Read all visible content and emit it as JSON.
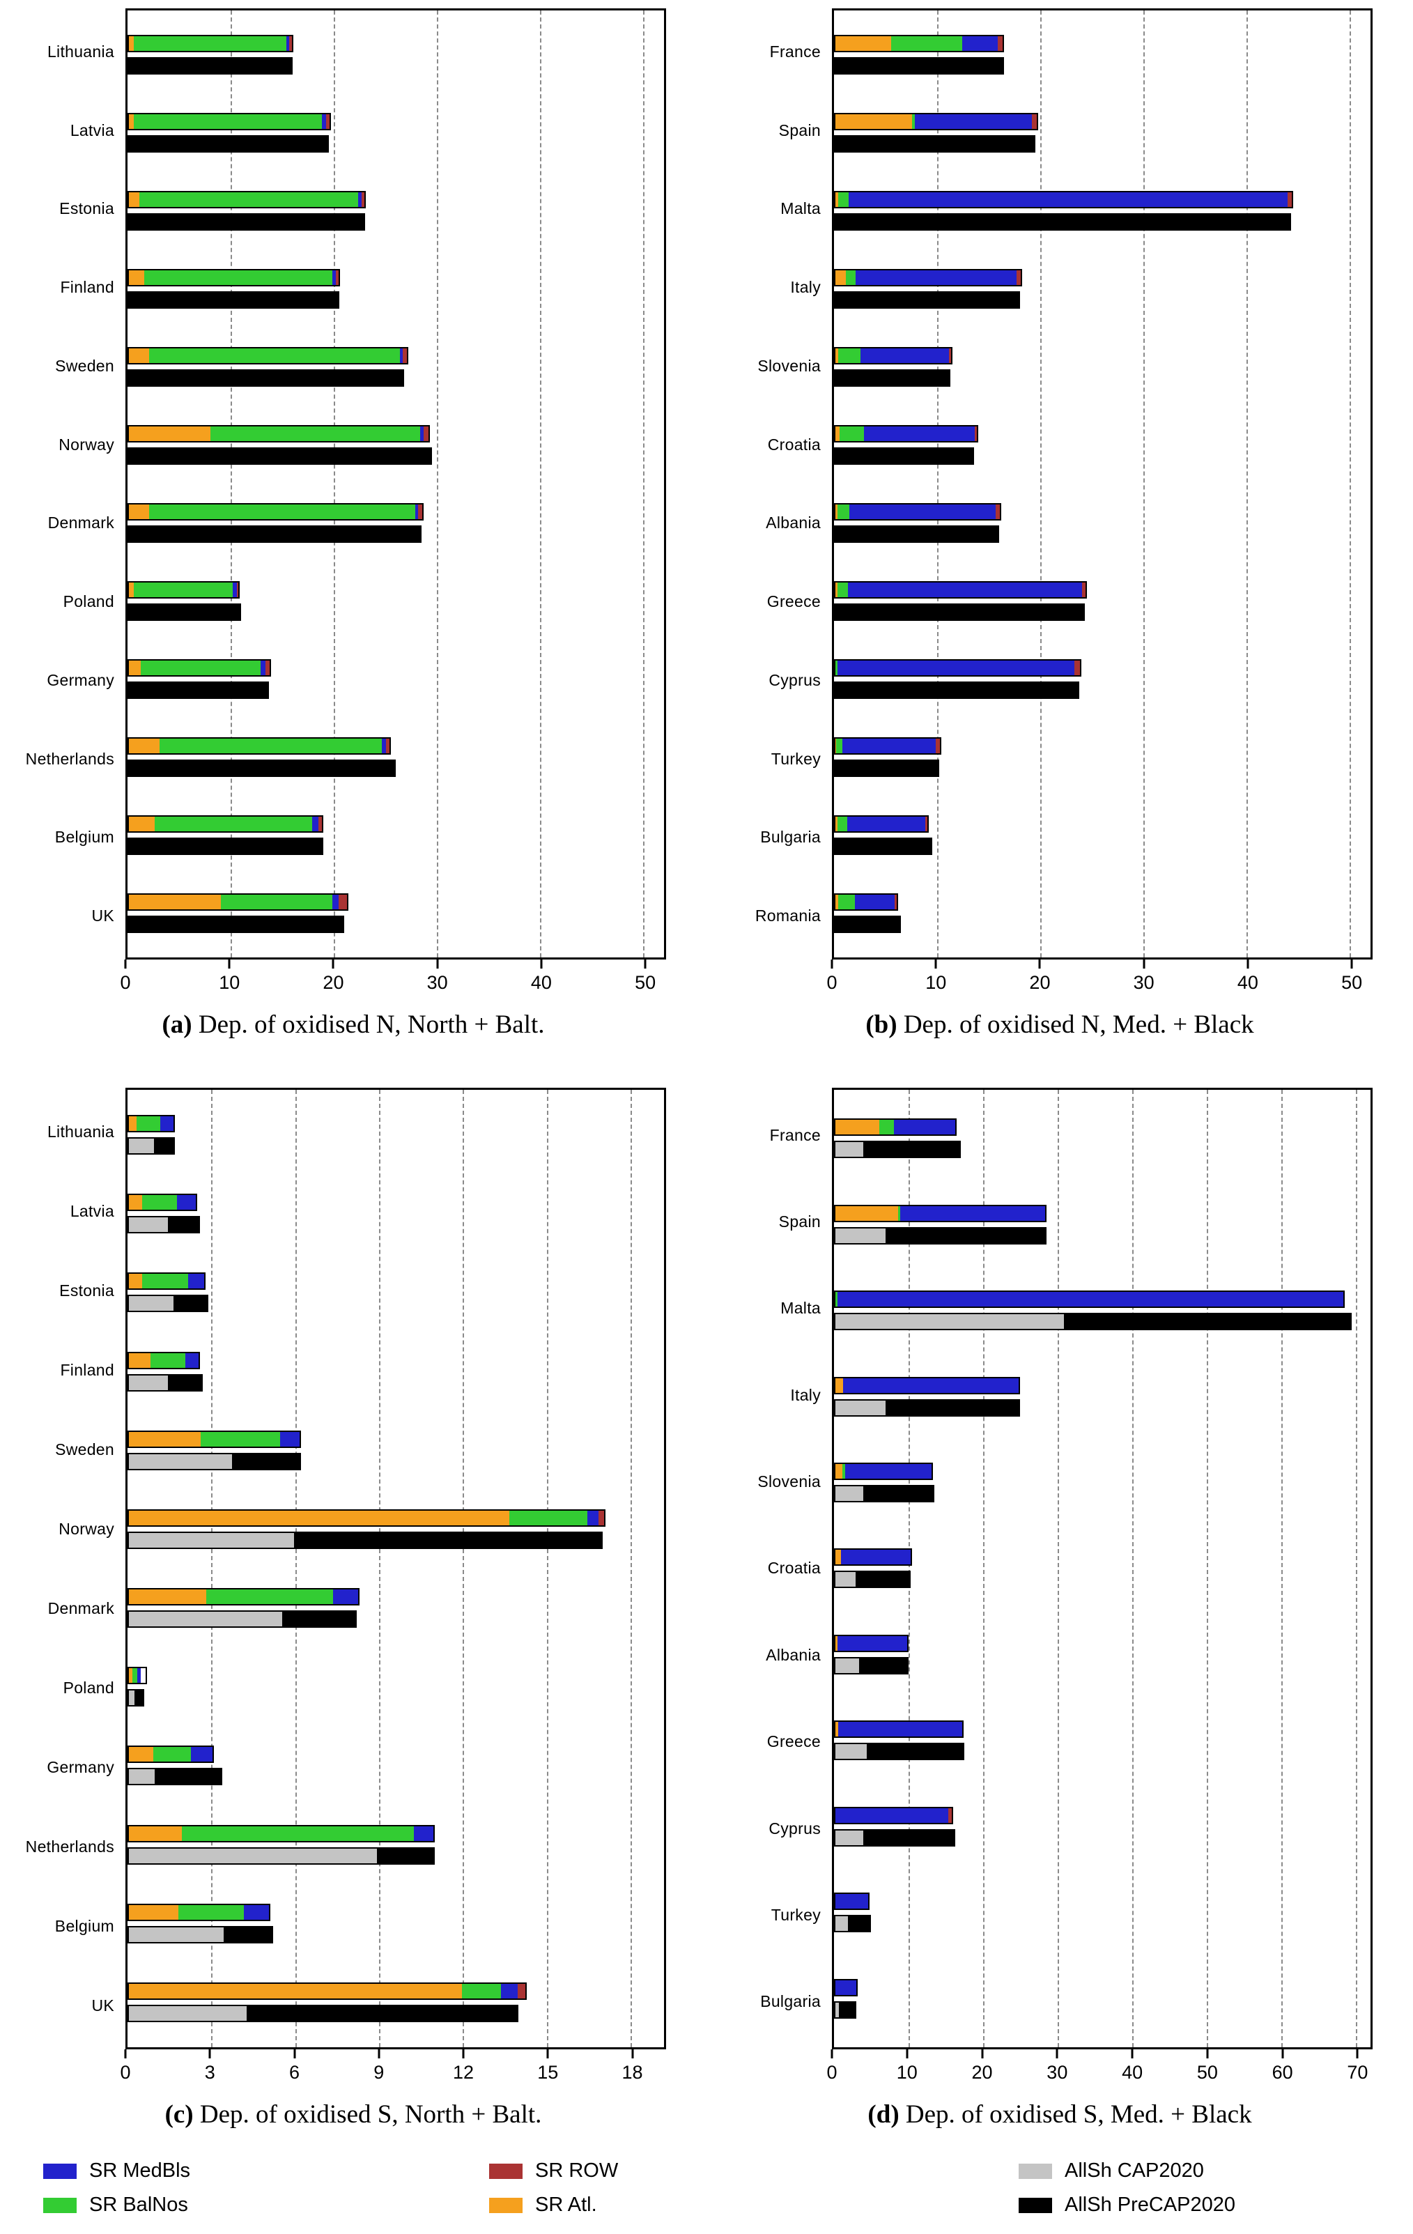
{
  "colors": {
    "medbls": "#2222cc",
    "balnos": "#33cc33",
    "row": "#aa3333",
    "atl": "#f5a01e",
    "cap2020": "#c4c4c4",
    "precap2020": "#000000",
    "gridline": "#8a8a8a"
  },
  "legend": {
    "items": [
      {
        "key": "medbls",
        "label": "SR MedBls",
        "color": "#2222cc"
      },
      {
        "key": "balnos",
        "label": "SR BalNos",
        "color": "#33cc33"
      },
      {
        "key": "row",
        "label": "SR ROW",
        "color": "#aa3333"
      },
      {
        "key": "atl",
        "label": "SR Atl.",
        "color": "#f5a01e"
      },
      {
        "key": "cap2020",
        "label": "AllSh CAP2020",
        "color": "#c4c4c4"
      },
      {
        "key": "precap2020",
        "label": "AllSh  PreCAP2020",
        "color": "#000000"
      }
    ]
  },
  "chart_data": [
    {
      "id": "a",
      "type": "bar",
      "orientation": "horizontal-stacked",
      "caption_letter": "(a)",
      "caption_text": "Dep. of oxidised N, North + Balt.",
      "xticks": [
        0,
        10,
        20,
        30,
        40,
        50
      ],
      "axis_max": 52,
      "series_keys": [
        "atl",
        "balnos",
        "medbls",
        "row"
      ],
      "rows": [
        {
          "label": "Lithuania",
          "atl": 0.5,
          "balnos": 15.0,
          "medbls": 0.3,
          "row": 0.3,
          "precap": 16.0,
          "cap": null
        },
        {
          "label": "Latvia",
          "atl": 0.5,
          "balnos": 18.5,
          "medbls": 0.4,
          "row": 0.3,
          "precap": 19.5,
          "cap": null
        },
        {
          "label": "Estonia",
          "atl": 1.0,
          "balnos": 21.5,
          "medbls": 0.3,
          "row": 0.3,
          "precap": 23.0,
          "cap": null
        },
        {
          "label": "Finland",
          "atl": 1.5,
          "balnos": 18.5,
          "medbls": 0.3,
          "row": 0.3,
          "precap": 20.5,
          "cap": null
        },
        {
          "label": "Sweden",
          "atl": 2.0,
          "balnos": 24.5,
          "medbls": 0.3,
          "row": 0.4,
          "precap": 26.8,
          "cap": null
        },
        {
          "label": "Norway",
          "atl": 8.0,
          "balnos": 20.5,
          "medbls": 0.3,
          "row": 0.5,
          "precap": 29.5,
          "cap": null
        },
        {
          "label": "Denmark",
          "atl": 2.0,
          "balnos": 26.0,
          "medbls": 0.3,
          "row": 0.4,
          "precap": 28.5,
          "cap": null
        },
        {
          "label": "Poland",
          "atl": 0.5,
          "balnos": 9.8,
          "medbls": 0.4,
          "row": 0.2,
          "precap": 11.0,
          "cap": null
        },
        {
          "label": "Germany",
          "atl": 1.2,
          "balnos": 11.8,
          "medbls": 0.5,
          "row": 0.4,
          "precap": 13.7,
          "cap": null
        },
        {
          "label": "Netherlands",
          "atl": 3.0,
          "balnos": 21.8,
          "medbls": 0.4,
          "row": 0.3,
          "precap": 26.0,
          "cap": null
        },
        {
          "label": "Belgium",
          "atl": 2.5,
          "balnos": 15.5,
          "medbls": 0.6,
          "row": 0.4,
          "precap": 19.0,
          "cap": null
        },
        {
          "label": "UK",
          "atl": 9.0,
          "balnos": 11.0,
          "medbls": 0.6,
          "row": 0.8,
          "precap": 21.0,
          "cap": null
        }
      ]
    },
    {
      "id": "b",
      "type": "bar",
      "orientation": "horizontal-stacked",
      "caption_letter": "(b)",
      "caption_text": "Dep. of oxidised N, Med. + Black",
      "xticks": [
        0,
        10,
        20,
        30,
        40,
        50
      ],
      "axis_max": 52,
      "series_keys": [
        "atl",
        "balnos",
        "medbls",
        "row"
      ],
      "rows": [
        {
          "label": "France",
          "atl": 5.5,
          "balnos": 7.0,
          "medbls": 3.5,
          "row": 0.5,
          "precap": 16.5,
          "cap": null
        },
        {
          "label": "Spain",
          "atl": 7.5,
          "balnos": 0.3,
          "medbls": 11.5,
          "row": 0.5,
          "precap": 19.5,
          "cap": null
        },
        {
          "label": "Malta",
          "atl": 0.3,
          "balnos": 1.0,
          "medbls": 42.8,
          "row": 0.4,
          "precap": 44.3,
          "cap": null
        },
        {
          "label": "Italy",
          "atl": 1.0,
          "balnos": 1.0,
          "medbls": 15.8,
          "row": 0.4,
          "precap": 18.0,
          "cap": null
        },
        {
          "label": "Slovenia",
          "atl": 0.3,
          "balnos": 2.2,
          "medbls": 8.8,
          "row": 0.2,
          "precap": 11.3,
          "cap": null
        },
        {
          "label": "Croatia",
          "atl": 0.4,
          "balnos": 2.4,
          "medbls": 11.0,
          "row": 0.2,
          "precap": 13.6,
          "cap": null
        },
        {
          "label": "Albania",
          "atl": 0.2,
          "balnos": 1.2,
          "medbls": 14.4,
          "row": 0.4,
          "precap": 16.0,
          "cap": null
        },
        {
          "label": "Greece",
          "atl": 0.2,
          "balnos": 1.0,
          "medbls": 23.0,
          "row": 0.3,
          "precap": 24.3,
          "cap": null
        },
        {
          "label": "Cyprus",
          "atl": 0.0,
          "balnos": 0.2,
          "medbls": 23.2,
          "row": 0.6,
          "precap": 23.8,
          "cap": null
        },
        {
          "label": "Turkey",
          "atl": 0.1,
          "balnos": 0.6,
          "medbls": 9.3,
          "row": 0.4,
          "precap": 10.2,
          "cap": null
        },
        {
          "label": "Bulgaria",
          "atl": 0.2,
          "balnos": 1.0,
          "medbls": 7.8,
          "row": 0.2,
          "precap": 9.5,
          "cap": null
        },
        {
          "label": "Romania",
          "atl": 0.3,
          "balnos": 1.7,
          "medbls": 4.0,
          "row": 0.2,
          "precap": 6.5,
          "cap": null
        }
      ]
    },
    {
      "id": "c",
      "type": "bar",
      "orientation": "horizontal-stacked",
      "caption_letter": "(c)",
      "caption_text": "Dep. of oxidised S, North + Balt.",
      "xticks": [
        0,
        3,
        6,
        9,
        12,
        15,
        18
      ],
      "axis_max": 19.2,
      "series_keys": [
        "atl",
        "balnos",
        "medbls",
        "row"
      ],
      "rows": [
        {
          "label": "Lithuania",
          "atl": 0.3,
          "balnos": 0.9,
          "medbls": 0.5,
          "row": 0.0,
          "precap": 1.7,
          "cap": 1.0
        },
        {
          "label": "Latvia",
          "atl": 0.5,
          "balnos": 1.3,
          "medbls": 0.7,
          "row": 0.0,
          "precap": 2.6,
          "cap": 1.5
        },
        {
          "label": "Estonia",
          "atl": 0.5,
          "balnos": 1.7,
          "medbls": 0.6,
          "row": 0.0,
          "precap": 2.9,
          "cap": 1.7
        },
        {
          "label": "Finland",
          "atl": 0.8,
          "balnos": 1.3,
          "medbls": 0.5,
          "row": 0.0,
          "precap": 2.7,
          "cap": 1.5
        },
        {
          "label": "Sweden",
          "atl": 2.6,
          "balnos": 2.9,
          "medbls": 0.7,
          "row": 0.0,
          "precap": 6.2,
          "cap": 3.8
        },
        {
          "label": "Norway",
          "atl": 13.7,
          "balnos": 2.8,
          "medbls": 0.4,
          "row": 0.2,
          "precap": 17.0,
          "cap": 6.0
        },
        {
          "label": "Denmark",
          "atl": 2.8,
          "balnos": 4.6,
          "medbls": 0.9,
          "row": 0.0,
          "precap": 8.2,
          "cap": 5.6
        },
        {
          "label": "Poland",
          "atl": 0.2,
          "balnos": 0.3,
          "medbls": 0.2,
          "row": 0.0,
          "precap": 0.6,
          "cap": 0.3
        },
        {
          "label": "Germany",
          "atl": 0.9,
          "balnos": 1.4,
          "medbls": 0.8,
          "row": 0.0,
          "precap": 3.4,
          "cap": 1.0
        },
        {
          "label": "Netherlands",
          "atl": 1.9,
          "balnos": 8.4,
          "medbls": 0.7,
          "row": 0.0,
          "precap": 11.0,
          "cap": 9.0
        },
        {
          "label": "Belgium",
          "atl": 1.8,
          "balnos": 2.4,
          "medbls": 0.9,
          "row": 0.0,
          "precap": 5.2,
          "cap": 3.5
        },
        {
          "label": "UK",
          "atl": 12.0,
          "balnos": 1.4,
          "medbls": 0.6,
          "row": 0.3,
          "precap": 14.0,
          "cap": 4.3
        }
      ]
    },
    {
      "id": "d",
      "type": "bar",
      "orientation": "horizontal-stacked",
      "caption_letter": "(d)",
      "caption_text": "Dep. of oxidised S, Med. + Black",
      "xticks": [
        0,
        10,
        20,
        30,
        40,
        50,
        60,
        70
      ],
      "axis_max": 72,
      "series_keys": [
        "atl",
        "balnos",
        "medbls",
        "row"
      ],
      "rows": [
        {
          "label": "France",
          "atl": 6.0,
          "balnos": 2.0,
          "medbls": 8.5,
          "row": 0.0,
          "precap": 17.0,
          "cap": 4.0
        },
        {
          "label": "Spain",
          "atl": 8.5,
          "balnos": 0.3,
          "medbls": 19.7,
          "row": 0.0,
          "precap": 28.5,
          "cap": 7.0
        },
        {
          "label": "Malta",
          "atl": 0.0,
          "balnos": 0.3,
          "medbls": 68.2,
          "row": 0.0,
          "precap": 69.5,
          "cap": 31.0
        },
        {
          "label": "Italy",
          "atl": 1.0,
          "balnos": 0.0,
          "medbls": 24.0,
          "row": 0.0,
          "precap": 25.0,
          "cap": 7.0
        },
        {
          "label": "Slovenia",
          "atl": 1.0,
          "balnos": 0.3,
          "medbls": 12.0,
          "row": 0.0,
          "precap": 13.5,
          "cap": 4.0
        },
        {
          "label": "Croatia",
          "atl": 0.8,
          "balnos": 0.0,
          "medbls": 9.7,
          "row": 0.0,
          "precap": 10.3,
          "cap": 3.0
        },
        {
          "label": "Albania",
          "atl": 0.3,
          "balnos": 0.0,
          "medbls": 9.7,
          "row": 0.0,
          "precap": 10.0,
          "cap": 3.5
        },
        {
          "label": "Greece",
          "atl": 0.4,
          "balnos": 0.0,
          "medbls": 17.0,
          "row": 0.0,
          "precap": 17.5,
          "cap": 4.5
        },
        {
          "label": "Cyprus",
          "atl": 0.0,
          "balnos": 0.0,
          "medbls": 15.5,
          "row": 0.5,
          "precap": 16.3,
          "cap": 4.0
        },
        {
          "label": "Turkey",
          "atl": 0.0,
          "balnos": 0.0,
          "medbls": 4.8,
          "row": 0.0,
          "precap": 5.0,
          "cap": 2.0
        },
        {
          "label": "Bulgaria",
          "atl": 0.0,
          "balnos": 0.0,
          "medbls": 3.2,
          "row": 0.0,
          "precap": 3.0,
          "cap": 0.8
        }
      ]
    }
  ]
}
